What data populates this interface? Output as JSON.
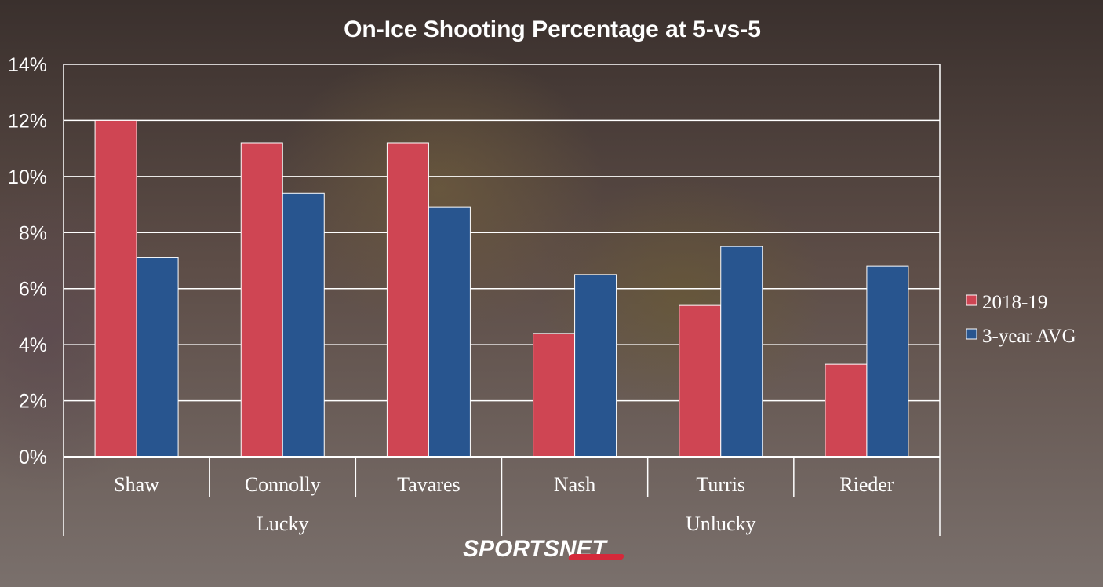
{
  "chart_data": {
    "type": "bar",
    "title": "On-Ice Shooting Percentage at 5-vs-5",
    "categories": [
      "Shaw",
      "Connolly",
      "Tavares",
      "Nash",
      "Turris",
      "Rieder"
    ],
    "groups": [
      {
        "label": "Lucky",
        "categories": [
          "Shaw",
          "Connolly",
          "Tavares"
        ]
      },
      {
        "label": "Unlucky",
        "categories": [
          "Nash",
          "Turris",
          "Rieder"
        ]
      }
    ],
    "series": [
      {
        "name": "2018-19",
        "color": "#cf4553",
        "values": [
          12.0,
          11.2,
          11.2,
          4.4,
          5.4,
          3.3
        ]
      },
      {
        "name": "3-year AVG",
        "color": "#28558f",
        "values": [
          7.1,
          9.4,
          8.9,
          6.5,
          7.5,
          6.8
        ]
      }
    ],
    "y_ticks": [
      "0%",
      "2%",
      "4%",
      "6%",
      "8%",
      "10%",
      "12%",
      "14%"
    ],
    "ylim": [
      0,
      14
    ],
    "grid": true,
    "legend_position": "right"
  },
  "brand": {
    "logo_text": "SPORTSNET"
  }
}
